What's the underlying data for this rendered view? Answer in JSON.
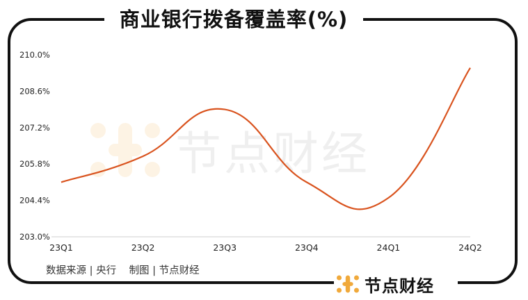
{
  "brand": "节点财经",
  "source_text": "数据来源 | 央行    制图 | 节点财经",
  "colors": {
    "line": "#d9531e",
    "accent": "#f0a93b",
    "frame": "#111111"
  },
  "chart_data": {
    "type": "line",
    "title": "商业银行拨备覆盖率(%)",
    "categories": [
      "23Q1",
      "23Q2",
      "23Q3",
      "23Q4",
      "24Q1",
      "24Q2"
    ],
    "series": [
      {
        "values": [
          205.1,
          206.1,
          207.9,
          205.1,
          204.5,
          209.5
        ]
      }
    ],
    "yticks": [
      "203.0%",
      "204.4%",
      "205.8%",
      "207.2%",
      "208.6%",
      "210.0%"
    ],
    "ylim": [
      203.0,
      210.0
    ],
    "grid": false,
    "smooth": true
  }
}
